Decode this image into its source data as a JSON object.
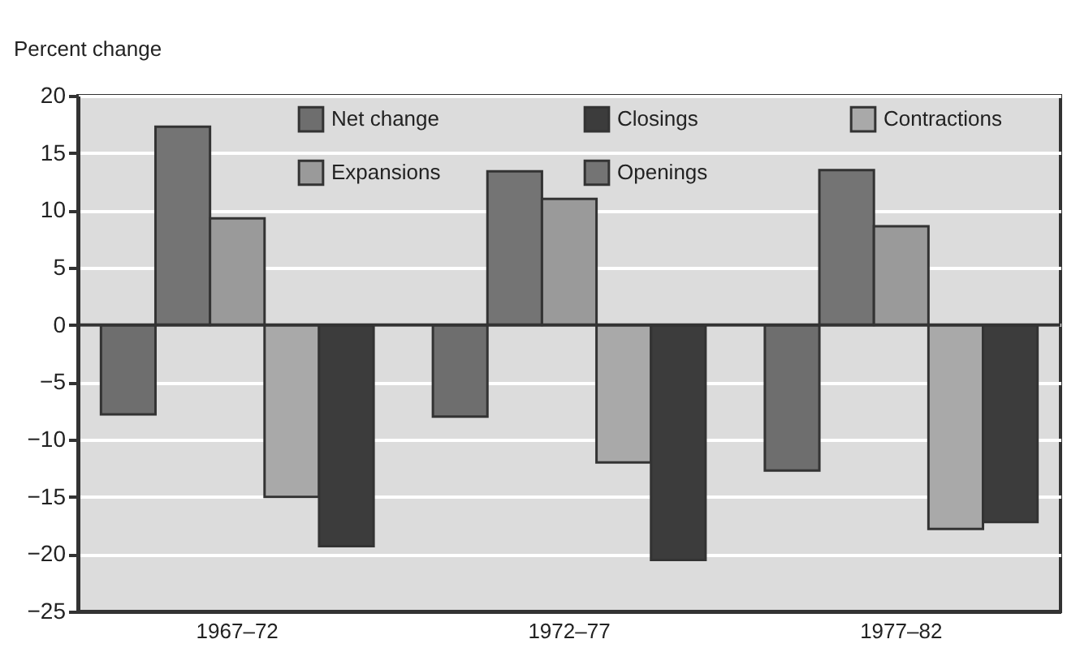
{
  "chart_data": {
    "type": "bar",
    "ylabel": "Percent change",
    "categories": [
      "1967–72",
      "1972–77",
      "1977–82"
    ],
    "series": [
      {
        "name": "Net change",
        "color": "#6e6e6e",
        "values": [
          -7.8,
          -8.0,
          -12.7
        ]
      },
      {
        "name": "Openings",
        "color": "#747474",
        "values": [
          17.3,
          13.4,
          13.5
        ]
      },
      {
        "name": "Expansions",
        "color": "#9a9a9a",
        "values": [
          9.3,
          11.0,
          8.6
        ]
      },
      {
        "name": "Contractions",
        "color": "#a9a9a9",
        "values": [
          -15.0,
          -12.0,
          -17.8
        ]
      },
      {
        "name": "Closings",
        "color": "#3c3c3c",
        "values": [
          -19.3,
          -20.5,
          -17.2
        ]
      }
    ],
    "ylim": [
      -25,
      20
    ],
    "yticks": [
      -25,
      -20,
      -15,
      -10,
      -5,
      0,
      5,
      10,
      15,
      20
    ],
    "grid": "y",
    "legend": "top"
  }
}
